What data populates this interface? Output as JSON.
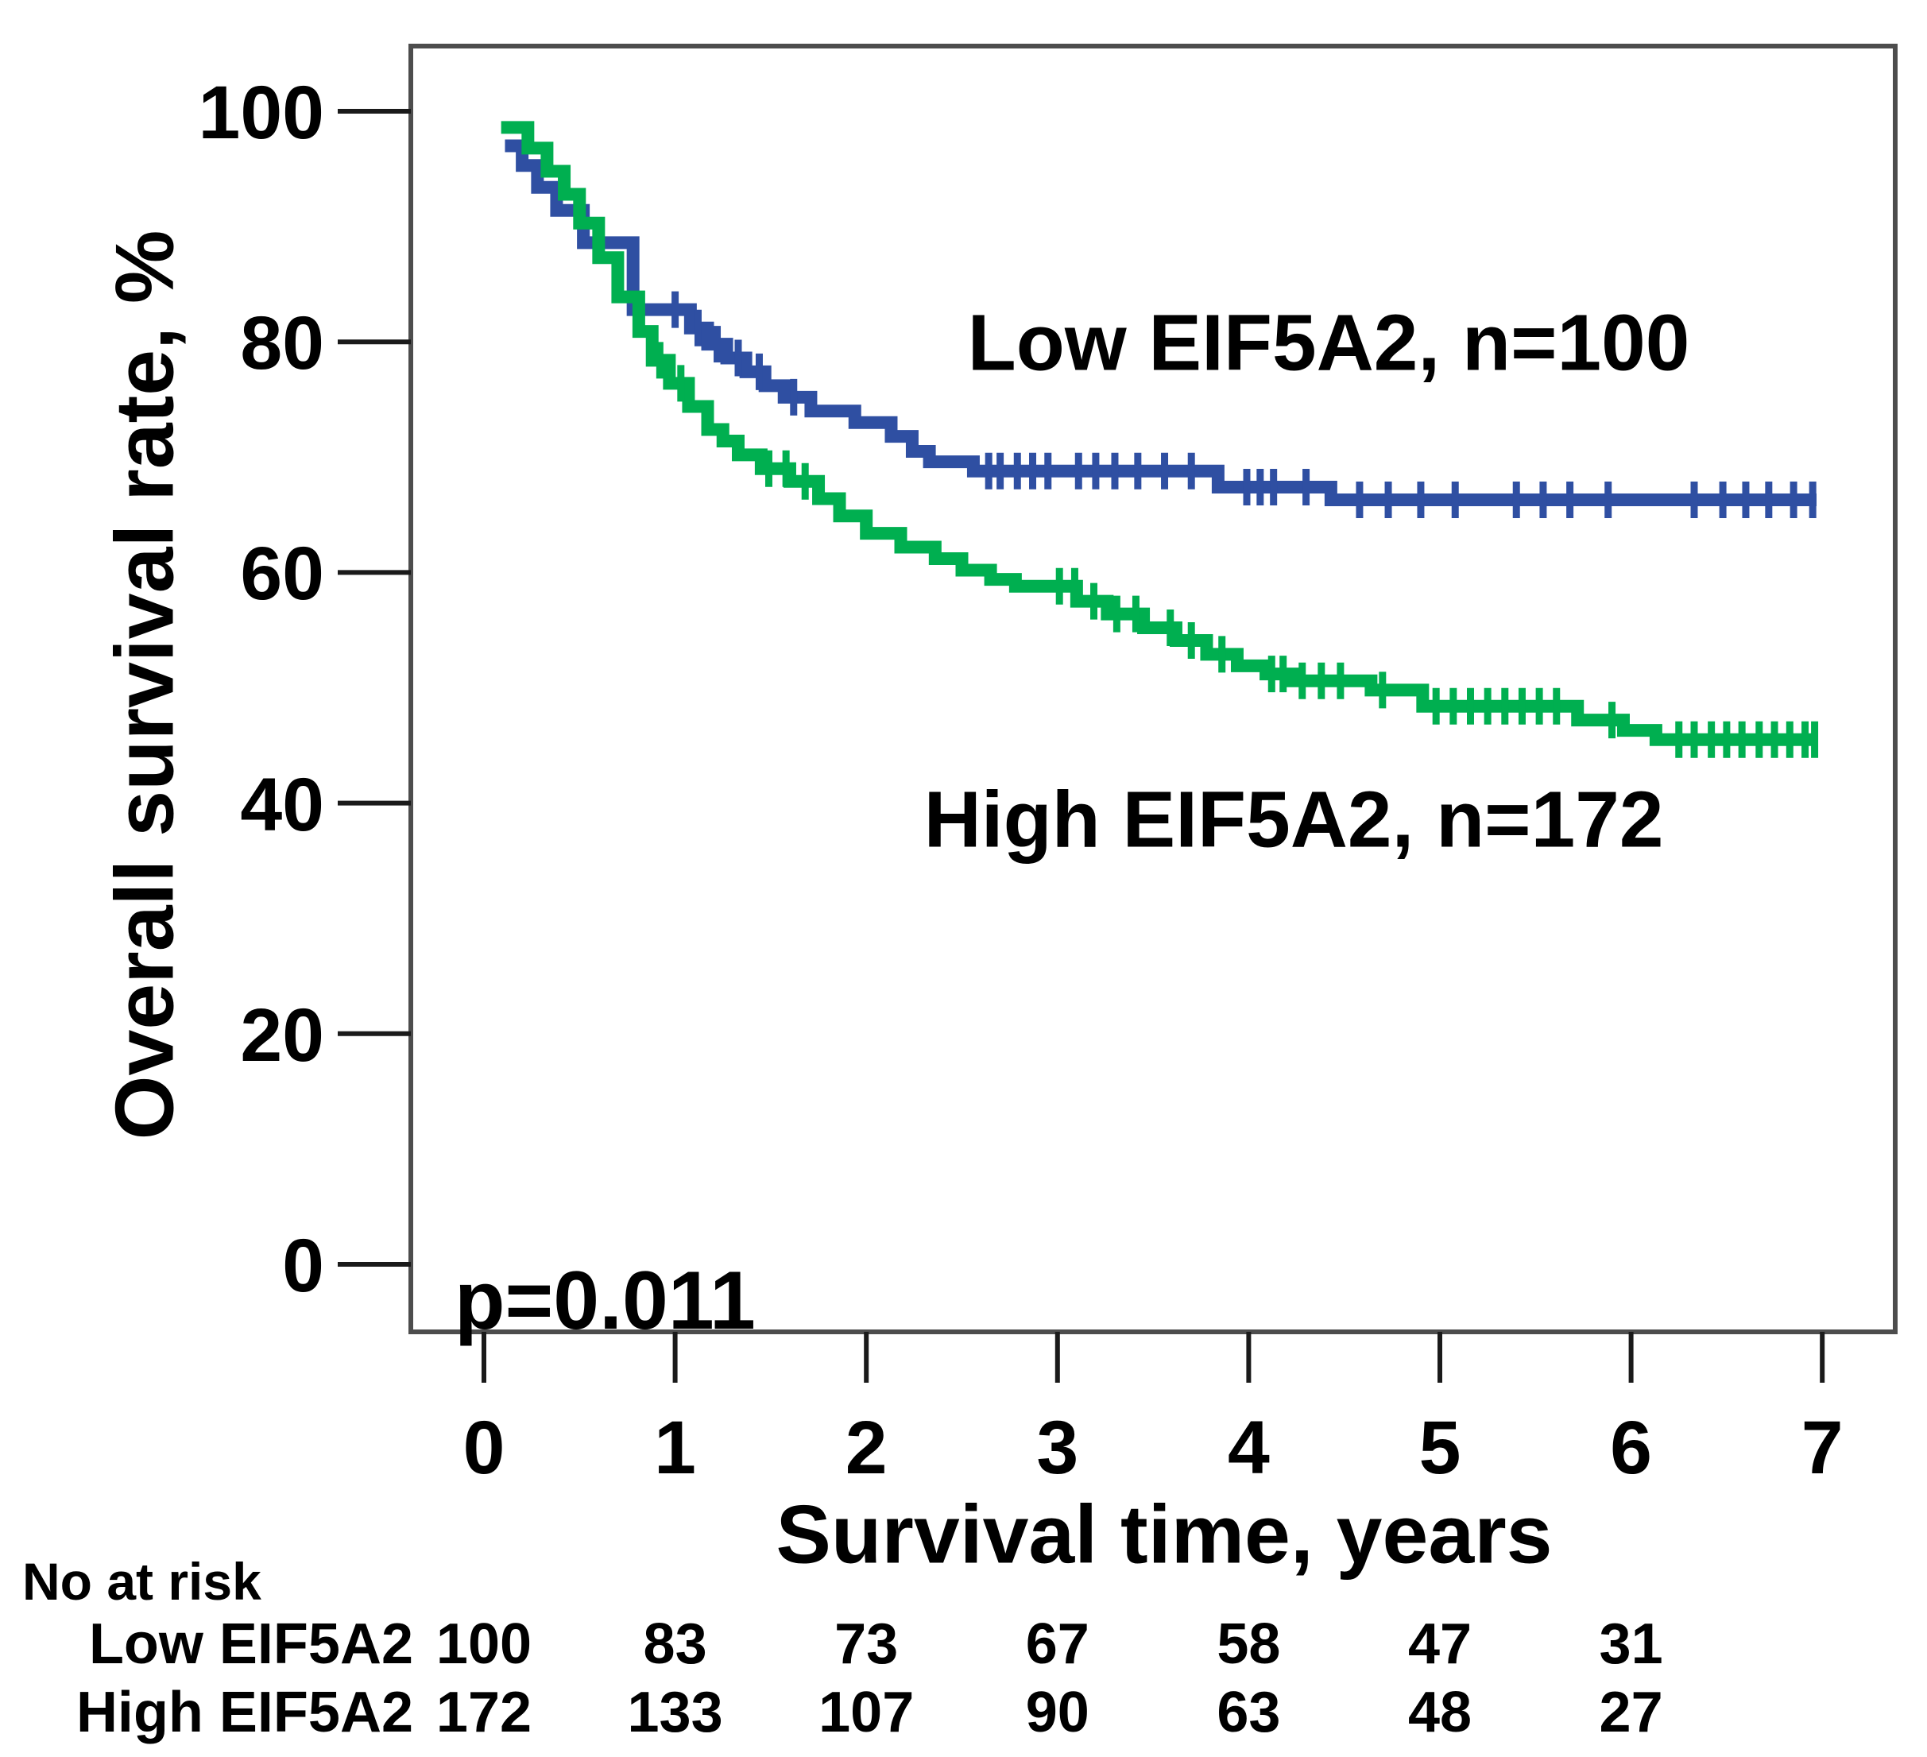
{
  "figure": {
    "p_value": "p=0.011",
    "annotations": {
      "low_curve_label": "Low EIF5A2, n=100",
      "high_curve_label": "High EIF5A2, n=172"
    }
  },
  "chart_data": {
    "type": "line",
    "subtype": "kaplan-meier-step",
    "title": "",
    "xlabel": "Survival time, years",
    "ylabel": "Overall survival rate, %",
    "xlim": [
      0,
      7.3
    ],
    "ylim": [
      0,
      100
    ],
    "x_ticks": [
      0,
      1,
      2,
      3,
      4,
      5,
      6,
      7
    ],
    "y_ticks": [
      100,
      80,
      60,
      40,
      20,
      0
    ],
    "grid": false,
    "legend_position": "inline-annotations",
    "p_value": "p=0.011",
    "series": [
      {
        "name": "Low EIF5A2, n=100",
        "color": "#2F4FA2",
        "end_time": 6.97,
        "points": [
          [
            0.11,
            97.0
          ],
          [
            0.2,
            95.3
          ],
          [
            0.28,
            93.4
          ],
          [
            0.38,
            91.4
          ],
          [
            0.52,
            88.6
          ],
          [
            0.78,
            82.8
          ],
          [
            1.08,
            81.2
          ],
          [
            1.17,
            79.8
          ],
          [
            1.27,
            78.6
          ],
          [
            1.37,
            77.4
          ],
          [
            1.47,
            76.2
          ],
          [
            1.57,
            75.2
          ],
          [
            1.71,
            74.0
          ],
          [
            1.94,
            73.0
          ],
          [
            2.13,
            71.8
          ],
          [
            2.24,
            70.5
          ],
          [
            2.33,
            69.6
          ],
          [
            2.56,
            68.8
          ],
          [
            3.84,
            67.4
          ],
          [
            4.43,
            66.3
          ]
        ],
        "censor_ticks": [
          1.0,
          1.12,
          1.22,
          1.33,
          1.44,
          1.62,
          2.64,
          2.7,
          2.79,
          2.87,
          2.95,
          3.11,
          3.2,
          3.3,
          3.42,
          3.56,
          3.7,
          3.99,
          4.06,
          4.13,
          4.3,
          4.58,
          4.73,
          4.9,
          5.08,
          5.4,
          5.54,
          5.68,
          5.88,
          6.33,
          6.48,
          6.6,
          6.72,
          6.85,
          6.95
        ]
      },
      {
        "name": "High EIF5A2, n=172",
        "color": "#00AF50",
        "end_time": 6.97,
        "points": [
          [
            0.09,
            98.6
          ],
          [
            0.23,
            96.8
          ],
          [
            0.33,
            94.8
          ],
          [
            0.42,
            92.8
          ],
          [
            0.5,
            90.3
          ],
          [
            0.6,
            87.3
          ],
          [
            0.7,
            83.9
          ],
          [
            0.81,
            80.9
          ],
          [
            0.88,
            78.4
          ],
          [
            0.97,
            76.4
          ],
          [
            1.07,
            74.4
          ],
          [
            1.17,
            72.4
          ],
          [
            1.25,
            71.4
          ],
          [
            1.33,
            70.2
          ],
          [
            1.45,
            69.0
          ],
          [
            1.6,
            67.9
          ],
          [
            1.75,
            66.4
          ],
          [
            1.86,
            64.9
          ],
          [
            2.0,
            63.4
          ],
          [
            2.18,
            62.2
          ],
          [
            2.36,
            61.2
          ],
          [
            2.5,
            60.2
          ],
          [
            2.65,
            59.4
          ],
          [
            2.78,
            58.8
          ],
          [
            3.1,
            57.5
          ],
          [
            3.26,
            56.4
          ],
          [
            3.45,
            55.2
          ],
          [
            3.62,
            54.1
          ],
          [
            3.78,
            52.9
          ],
          [
            3.94,
            51.9
          ],
          [
            4.09,
            51.2
          ],
          [
            4.23,
            50.6
          ],
          [
            4.64,
            49.8
          ],
          [
            4.91,
            48.4
          ],
          [
            5.72,
            47.2
          ],
          [
            5.96,
            46.3
          ],
          [
            6.13,
            45.5
          ]
        ],
        "censor_ticks": [
          0.92,
          1.03,
          1.49,
          1.58,
          1.68,
          3.01,
          3.09,
          3.19,
          3.31,
          3.41,
          3.59,
          3.7,
          3.86,
          4.12,
          4.18,
          4.28,
          4.38,
          4.48,
          4.7,
          4.98,
          5.07,
          5.16,
          5.25,
          5.34,
          5.43,
          5.52,
          5.61,
          5.9,
          6.25,
          6.33,
          6.42,
          6.5,
          6.58,
          6.67,
          6.75,
          6.83,
          6.91,
          6.96
        ]
      }
    ]
  },
  "risk_table": {
    "header": "No at risk",
    "time_points": [
      0,
      1,
      2,
      3,
      4,
      5,
      6
    ],
    "rows": [
      {
        "label": "Low EIF5A2",
        "values": [
          100,
          83,
          73,
          67,
          58,
          47,
          31
        ]
      },
      {
        "label": "High EIF5A2",
        "values": [
          172,
          133,
          107,
          90,
          63,
          48,
          27
        ]
      }
    ]
  },
  "colors": {
    "low_series": "#2F4FA2",
    "high_series": "#00AF50",
    "plot_border": "#4d4d4d",
    "tick": "#1a1a1a",
    "text": "#000000",
    "background": "#ffffff"
  }
}
